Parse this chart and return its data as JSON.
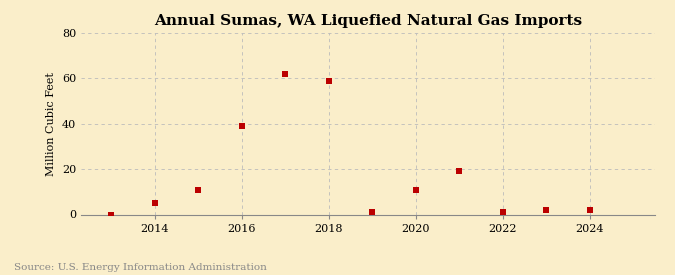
{
  "title": "Annual Sumas, WA Liquefied Natural Gas Imports",
  "ylabel": "Million Cubic Feet",
  "source": "Source: U.S. Energy Information Administration",
  "years": [
    2013,
    2014,
    2015,
    2016,
    2017,
    2018,
    2019,
    2020,
    2021,
    2022,
    2023,
    2024
  ],
  "values": [
    0,
    5,
    11,
    39,
    62,
    59,
    1,
    11,
    19,
    1,
    2,
    2
  ],
  "marker_color": "#bb0000",
  "marker": "s",
  "marker_size": 5,
  "xlim": [
    2012.3,
    2025.5
  ],
  "ylim": [
    0,
    80
  ],
  "yticks": [
    0,
    20,
    40,
    60,
    80
  ],
  "xticks": [
    2014,
    2016,
    2018,
    2020,
    2022,
    2024
  ],
  "grid_color": "#bbbbbb",
  "background_color": "#faeeca",
  "plot_bg_color": "#faeeca",
  "title_fontsize": 11,
  "label_fontsize": 8,
  "tick_fontsize": 8,
  "source_fontsize": 7.5,
  "source_color": "#888888"
}
